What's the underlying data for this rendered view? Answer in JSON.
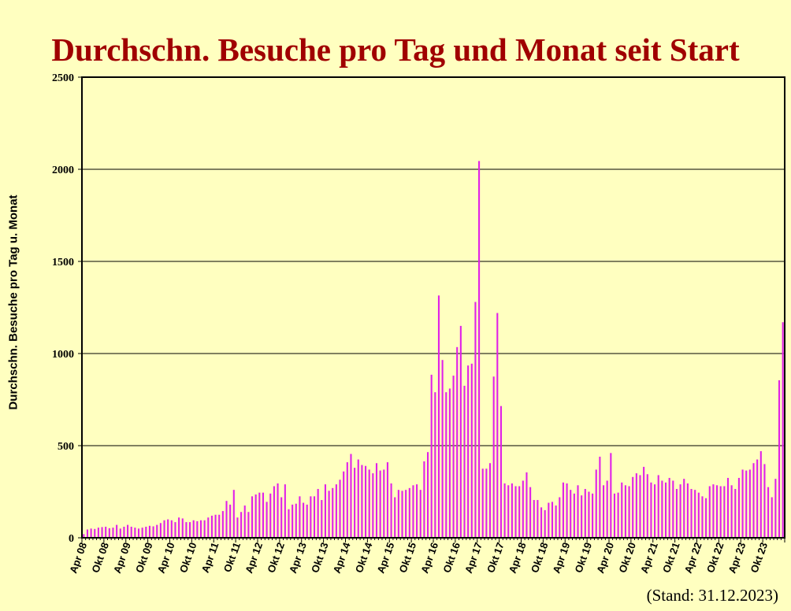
{
  "chart_data": {
    "type": "bar",
    "title": "Durchschn. Besuche pro Tag und Monat seit Start",
    "ylabel": "Durchschn. Besuche pro Tag u. Monat",
    "xlabel": "",
    "note": "(Stand: 31.12.2023)",
    "ylim": [
      0,
      2500
    ],
    "yticks": [
      0,
      500,
      1000,
      1500,
      2000,
      2500
    ],
    "grid": true,
    "bar_color": "#e020e8",
    "background": "#ffffc0",
    "title_color": "#a00000",
    "start_month": "2008-04",
    "x_tick_labels": [
      "Apr 08",
      "Okt 08",
      "Apr 09",
      "Okt 09",
      "Apr 10",
      "Okt 10",
      "Apr 11",
      "Okt 11",
      "Apr 12",
      "Okt 12",
      "Apr 13",
      "Okt 13",
      "Apr 14",
      "Okt 14",
      "Apr 15",
      "Okt 15",
      "Apr 16",
      "Okt 16",
      "Apr 17",
      "Okt 17",
      "Apr 18",
      "Okt 18",
      "Apr 19",
      "Okt 19",
      "Apr 20",
      "Okt 20",
      "Apr 21",
      "Okt 21",
      "Apr 22",
      "Okt 22",
      "Apr 23",
      "Okt 23"
    ],
    "values": [
      20,
      45,
      50,
      48,
      55,
      58,
      60,
      52,
      55,
      70,
      50,
      60,
      70,
      60,
      55,
      50,
      55,
      60,
      65,
      62,
      70,
      80,
      95,
      100,
      95,
      85,
      110,
      105,
      85,
      85,
      95,
      90,
      95,
      95,
      110,
      120,
      125,
      125,
      145,
      200,
      180,
      260,
      110,
      140,
      175,
      140,
      225,
      235,
      245,
      245,
      195,
      240,
      280,
      295,
      220,
      290,
      155,
      180,
      185,
      225,
      190,
      180,
      225,
      225,
      265,
      205,
      290,
      255,
      270,
      290,
      315,
      360,
      410,
      455,
      380,
      425,
      395,
      390,
      370,
      350,
      405,
      365,
      370,
      410,
      295,
      220,
      260,
      255,
      260,
      270,
      285,
      290,
      260,
      415,
      465,
      885,
      790,
      1315,
      965,
      790,
      810,
      880,
      1035,
      1150,
      825,
      935,
      945,
      1280,
      2045,
      375,
      375,
      405,
      875,
      1220,
      715,
      295,
      285,
      295,
      280,
      280,
      310,
      355,
      275,
      205,
      205,
      165,
      150,
      190,
      195,
      175,
      220,
      300,
      295,
      260,
      240,
      285,
      230,
      265,
      250,
      240,
      370,
      440,
      285,
      310,
      460,
      240,
      245,
      300,
      285,
      280,
      330,
      350,
      340,
      385,
      345,
      300,
      290,
      340,
      310,
      300,
      325,
      310,
      265,
      290,
      320,
      295,
      265,
      260,
      245,
      225,
      215,
      280,
      290,
      285,
      280,
      280,
      325,
      285,
      265,
      325,
      370,
      365,
      370,
      405,
      425,
      470,
      400,
      275,
      220,
      320,
      855,
      1170
    ]
  }
}
